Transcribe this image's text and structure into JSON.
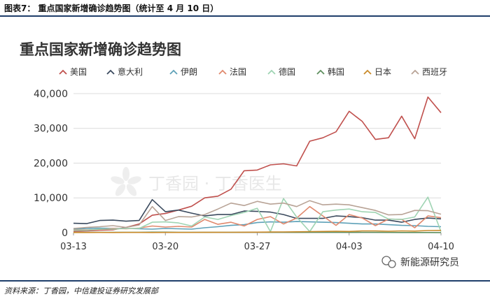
{
  "caption": "图表7：  重点国家新增确诊趋势图（统计至 4 月 10 日）",
  "source": "资料来源：丁香园，中信建投证券研究发展部",
  "watermark": "丁香园 · 丁香医生",
  "badge": {
    "text": "新能源研究员",
    "icon": "wechat-icon"
  },
  "chart_data": {
    "type": "line",
    "title": "重点国家新增确诊趋势图",
    "xlabel": "",
    "ylabel": "",
    "ylim": [
      0,
      42000
    ],
    "yticks": [
      0,
      10000,
      20000,
      30000,
      40000
    ],
    "ytick_labels": [
      "0",
      "10,000",
      "20,000",
      "30,000",
      "40,000"
    ],
    "x": [
      "03-13",
      "03-14",
      "03-15",
      "03-16",
      "03-17",
      "03-18",
      "03-19",
      "03-20",
      "03-21",
      "03-22",
      "03-23",
      "03-24",
      "03-25",
      "03-26",
      "03-27",
      "03-28",
      "03-29",
      "03-30",
      "03-31",
      "04-01",
      "04-02",
      "04-03",
      "04-04",
      "04-05",
      "04-06",
      "04-07",
      "04-08",
      "04-09",
      "04-10"
    ],
    "xticks": [
      "03-13",
      "03-20",
      "03-27",
      "04-03",
      "04-10"
    ],
    "legend_position": "top",
    "grid": "horizontal",
    "series": [
      {
        "name": "美国",
        "color": "#c0504d",
        "values": [
          400,
          500,
          700,
          800,
          1500,
          2500,
          5000,
          5500,
          6500,
          7600,
          10000,
          10500,
          12500,
          17800,
          18000,
          19500,
          19800,
          19200,
          26300,
          27300,
          29000,
          34900,
          32000,
          26800,
          27300,
          33500,
          27000,
          39000,
          34500
        ]
      },
      {
        "name": "意大利",
        "color": "#3b4a5e",
        "values": [
          2700,
          2600,
          3500,
          3600,
          3300,
          3500,
          9500,
          6000,
          6500,
          5600,
          4800,
          5200,
          5200,
          6200,
          6100,
          5900,
          5200,
          4100,
          4100,
          4100,
          4800,
          4600,
          4300,
          3600,
          3600,
          3000,
          3800,
          4200,
          3950
        ]
      },
      {
        "name": "伊朗",
        "color": "#5ea1b8",
        "values": [
          1000,
          1200,
          1300,
          1200,
          1200,
          1100,
          1000,
          1200,
          1100,
          1000,
          1400,
          1700,
          2100,
          2300,
          2900,
          3100,
          3000,
          3200,
          3100,
          3000,
          2900,
          2700,
          2500,
          2500,
          2300,
          2100,
          2000,
          1800,
          1700
        ]
      },
      {
        "name": "法国",
        "color": "#e0896e",
        "values": [
          800,
          800,
          900,
          1200,
          1100,
          1300,
          1900,
          1600,
          1800,
          1600,
          3800,
          2400,
          3000,
          1900,
          3800,
          4600,
          2500,
          4200,
          7500,
          4800,
          2100,
          5200,
          4200,
          2000,
          3900,
          3800,
          1400,
          4800,
          4300
        ]
      },
      {
        "name": "德国",
        "color": "#9fd4b3",
        "values": [
          700,
          700,
          1000,
          1000,
          1200,
          1200,
          3000,
          3100,
          2800,
          1900,
          4500,
          3800,
          4900,
          5800,
          7000,
          300,
          9800,
          4500,
          300,
          6000,
          6500,
          6800,
          6000,
          5800,
          3900,
          3800,
          4500,
          10200,
          300
        ]
      },
      {
        "name": "韩国",
        "color": "#5e8f5e",
        "values": [
          100,
          100,
          100,
          80,
          80,
          100,
          150,
          150,
          100,
          100,
          80,
          100,
          100,
          100,
          150,
          100,
          100,
          80,
          100,
          100,
          100,
          90,
          100,
          80,
          60,
          50,
          50,
          40,
          30
        ]
      },
      {
        "name": "日本",
        "color": "#c98a2a",
        "values": [
          50,
          50,
          60,
          50,
          60,
          60,
          50,
          70,
          70,
          60,
          80,
          80,
          100,
          120,
          150,
          180,
          200,
          250,
          300,
          350,
          400,
          350,
          500,
          500,
          400,
          500,
          450,
          600,
          650
        ]
      },
      {
        "name": "西班牙",
        "color": "#b8a396",
        "values": [
          1200,
          1500,
          1700,
          2000,
          1500,
          2200,
          7500,
          3500,
          4600,
          4500,
          5200,
          6800,
          8500,
          7800,
          9000,
          8200,
          8500,
          7500,
          9200,
          8000,
          8200,
          8000,
          7200,
          6400,
          5100,
          5200,
          6400,
          6300,
          5300
        ]
      }
    ]
  }
}
